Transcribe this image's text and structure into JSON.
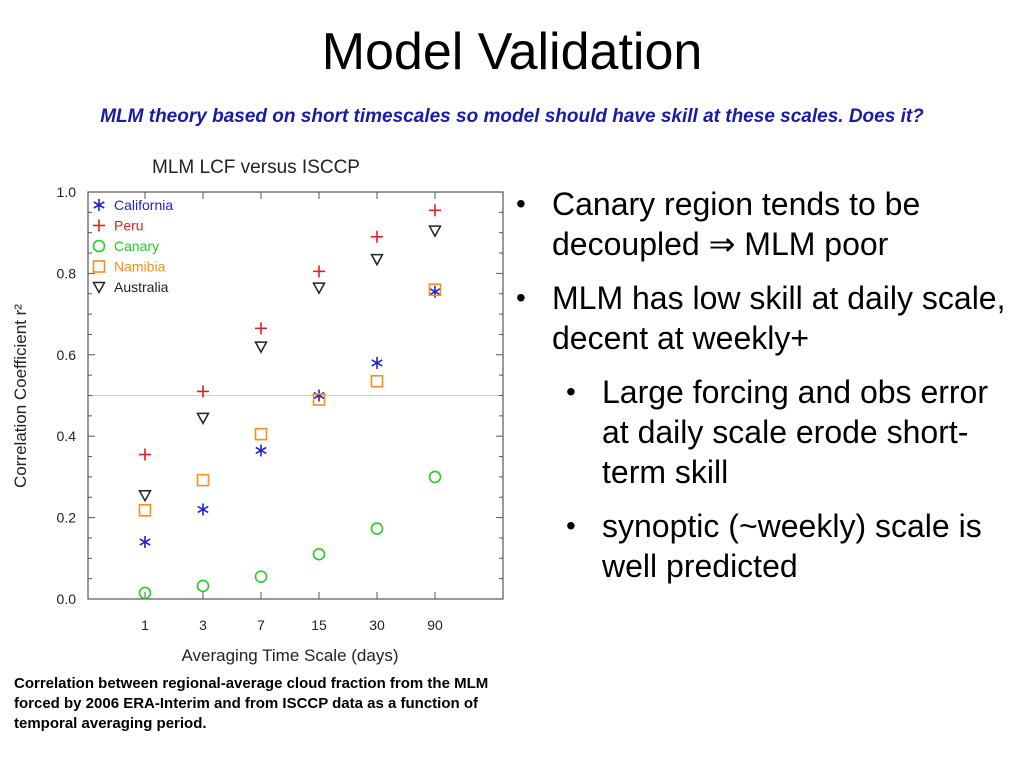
{
  "slide": {
    "title": "Model Validation",
    "subtitle": "MLM theory based on short timescales so model should have skill at these scales. Does it?",
    "caption": "Correlation between regional-average cloud fraction from the MLM forced by 2006 ERA-Interim and from ISCCP data as a function of temporal averaging period.",
    "bullets": [
      {
        "text": "Canary region tends to be decoupled ⇒ MLM poor",
        "level": 1
      },
      {
        "text": "MLM has low skill at daily scale, decent at weekly+",
        "level": 1
      },
      {
        "text": "Large forcing and obs error at daily scale erode short-term skill",
        "level": 2
      },
      {
        "text": "synoptic (~weekly) scale is well predicted",
        "level": 2
      }
    ],
    "bullet_glyph": "•"
  },
  "chart_data": {
    "type": "scatter",
    "title": "MLM LCF versus ISCCP",
    "xlabel": "Averaging Time Scale (days)",
    "ylabel": "Correlation Coefficient r²",
    "categories": [
      "1",
      "3",
      "7",
      "15",
      "30",
      "90"
    ],
    "ylim": [
      0,
      1.0
    ],
    "yticks": [
      "0.0",
      "0.2",
      "0.4",
      "0.6",
      "0.8",
      "1.0"
    ],
    "reference_line": 0.5,
    "legend_position": "top-left",
    "series": [
      {
        "name": "California",
        "marker": "asterisk",
        "color": "#2222cc",
        "values": [
          0.14,
          0.22,
          0.365,
          0.5,
          0.58,
          0.755
        ]
      },
      {
        "name": "Peru",
        "marker": "plus",
        "color": "#dd2222",
        "values": [
          0.355,
          0.51,
          0.665,
          0.805,
          0.89,
          0.955
        ]
      },
      {
        "name": "Canary",
        "marker": "circle",
        "color": "#22cc22",
        "values": [
          0.015,
          0.032,
          0.055,
          0.11,
          0.173,
          0.3
        ]
      },
      {
        "name": "Namibia",
        "marker": "square",
        "color": "#ff8c1a",
        "values": [
          0.218,
          0.292,
          0.405,
          0.49,
          0.535,
          0.76
        ]
      },
      {
        "name": "Australia",
        "marker": "triangle-down",
        "color": "#222222",
        "values": [
          0.255,
          0.445,
          0.62,
          0.765,
          0.835,
          0.905
        ]
      }
    ]
  }
}
